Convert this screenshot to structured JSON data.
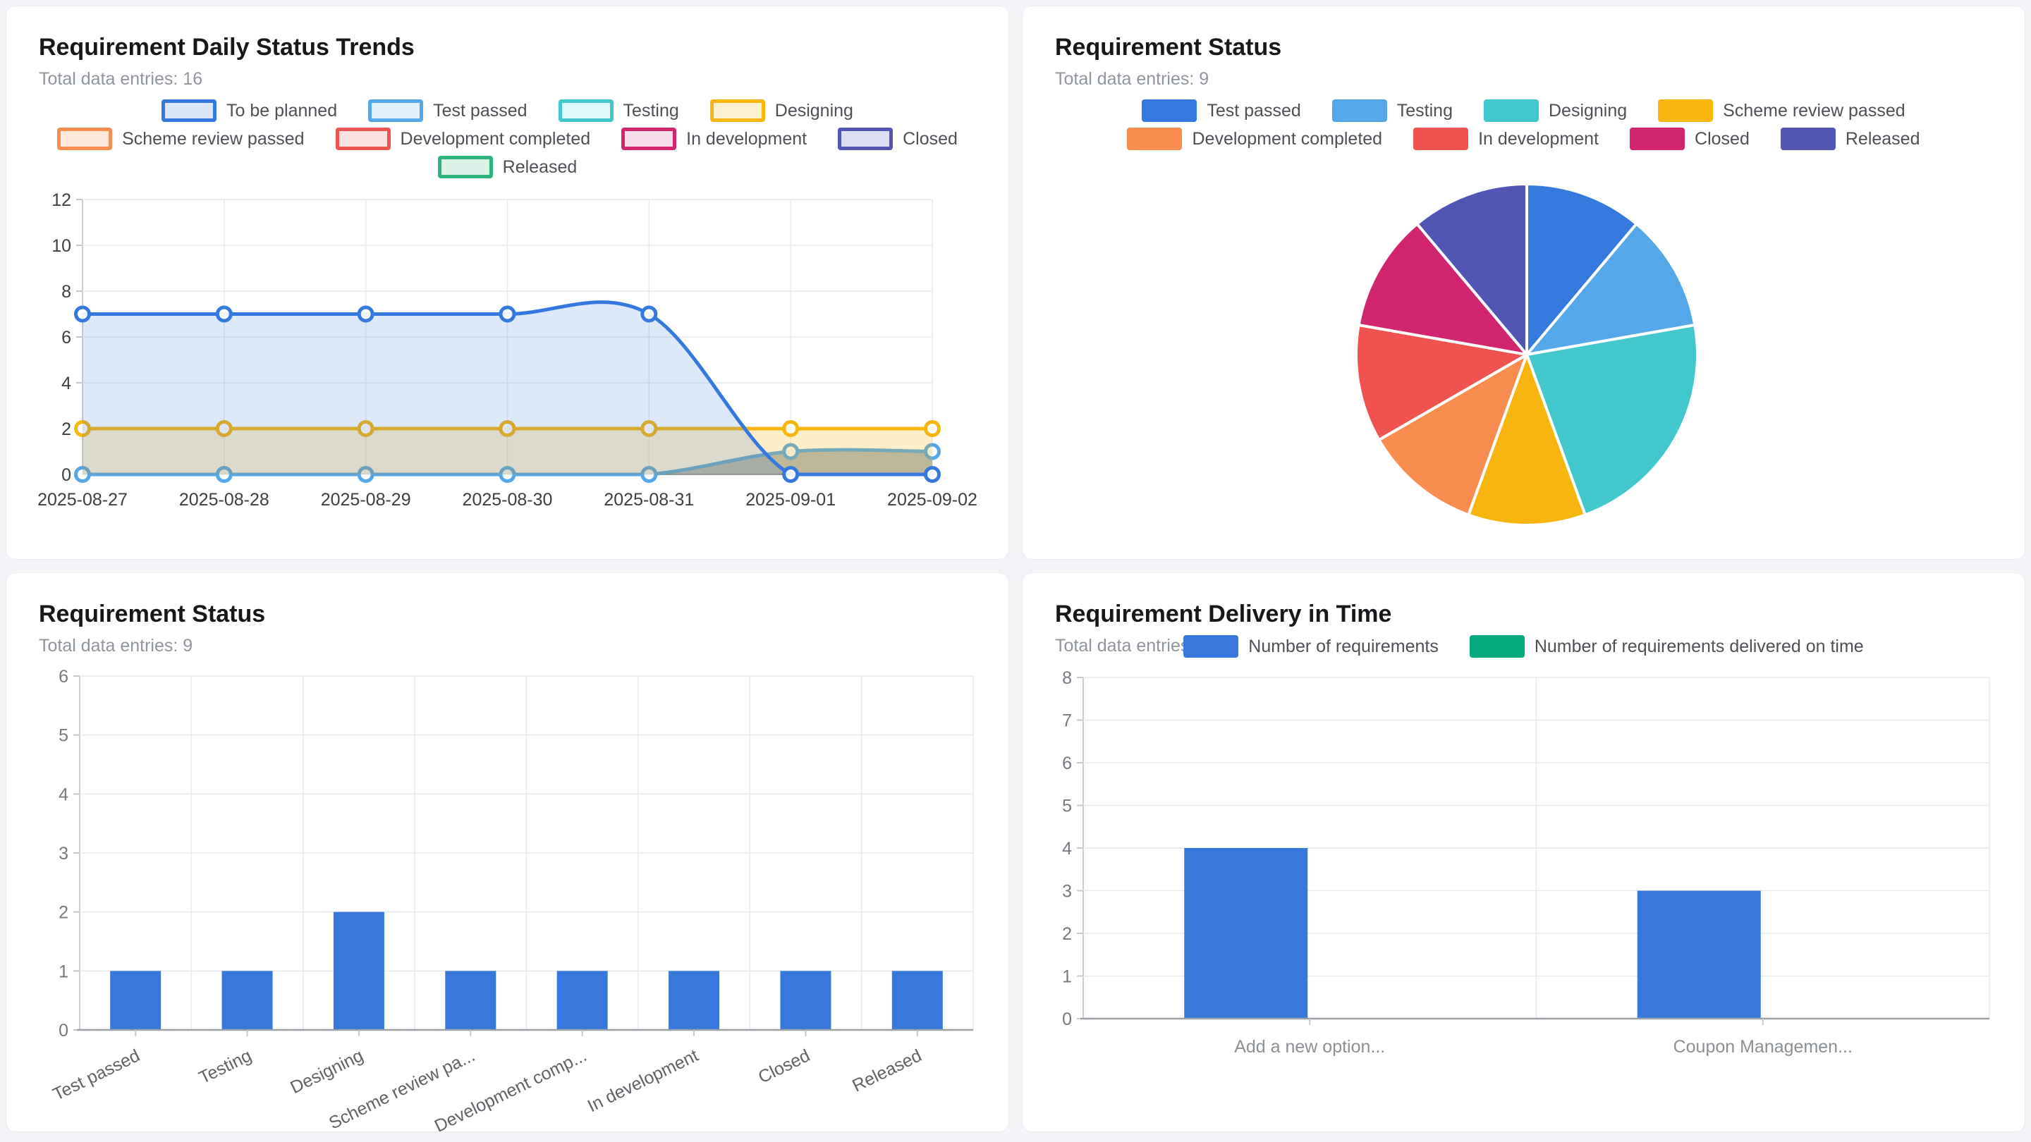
{
  "panels": {
    "trends": {
      "title": "Requirement Daily Status Trends",
      "subtitle": "Total data entries: 16"
    },
    "pie": {
      "title": "Requirement Status",
      "subtitle": "Total data entries: 9"
    },
    "statusBars": {
      "title": "Requirement Status",
      "subtitle": "Total data entries: 9"
    },
    "delivery": {
      "title": "Requirement Delivery in Time",
      "subtitle": "Total data entries: 7"
    }
  },
  "chart_data": [
    {
      "id": "trends",
      "type": "line",
      "title": "Requirement Daily Status Trends",
      "x": [
        "2025-08-27",
        "2025-08-28",
        "2025-08-29",
        "2025-08-30",
        "2025-08-31",
        "2025-09-01",
        "2025-09-02"
      ],
      "ylim": [
        0,
        12
      ],
      "ytick_step": 2,
      "grid": true,
      "legend_position": "top",
      "series": [
        {
          "name": "To be planned",
          "color": "#3579de",
          "fill": "rgba(53,121,222,0.17)",
          "swatch_fill": "#dbe7f8",
          "values": [
            7,
            7,
            7,
            7,
            7,
            0,
            0
          ]
        },
        {
          "name": "Test passed",
          "color": "#54a7e8",
          "fill": "rgba(96,116,132,0.50)",
          "swatch_fill": "#e1f1fb",
          "values": [
            0,
            0,
            0,
            0,
            0,
            1,
            1
          ]
        },
        {
          "name": "Testing",
          "color": "#41c7cc",
          "fill": "rgba(65,199,204,0.20)",
          "swatch_fill": "#e0f7f7",
          "values": [
            0,
            0,
            0,
            0,
            0,
            0,
            0
          ]
        },
        {
          "name": "Designing",
          "color": "#f8b50d",
          "fill": "rgba(248,181,13,0.22)",
          "swatch_fill": "#fdf0d0",
          "values": [
            2,
            2,
            2,
            2,
            2,
            2,
            2
          ]
        },
        {
          "name": "Scheme review passed",
          "color": "#f98d4f",
          "fill": "rgba(249,141,79,0.20)",
          "swatch_fill": "#fee9dd",
          "values": [
            0,
            0,
            0,
            0,
            0,
            0,
            0
          ]
        },
        {
          "name": "Development completed",
          "color": "#f0534f",
          "fill": "rgba(240,83,79,0.20)",
          "swatch_fill": "#fde1e0",
          "values": [
            0,
            0,
            0,
            0,
            0,
            0,
            0
          ]
        },
        {
          "name": "In development",
          "color": "#d2256f",
          "fill": "rgba(210,37,111,0.20)",
          "swatch_fill": "#f7dcea",
          "values": [
            0,
            0,
            0,
            0,
            0,
            0,
            0
          ]
        },
        {
          "name": "Closed",
          "color": "#5156b4",
          "fill": "rgba(81,86,180,0.20)",
          "swatch_fill": "#dddff2",
          "values": [
            0,
            0,
            0,
            0,
            0,
            0,
            0
          ]
        },
        {
          "name": "Released",
          "color": "#2cb47e",
          "fill": "rgba(44,180,126,0.20)",
          "swatch_fill": "#dcf2e8",
          "values": [
            0,
            0,
            0,
            0,
            0,
            0,
            0
          ]
        }
      ]
    },
    {
      "id": "status_pie",
      "type": "pie",
      "title": "Requirement Status",
      "labels": [
        "Test passed",
        "Testing",
        "Designing",
        "Scheme review passed",
        "Development completed",
        "In development",
        "Closed",
        "Released"
      ],
      "values": [
        1,
        1,
        2,
        1,
        1,
        1,
        1,
        1
      ],
      "colors": [
        "#3579de",
        "#54a7e8",
        "#41c7cc",
        "#f8b50d",
        "#f98d4f",
        "#f0534f",
        "#d2256f",
        "#5156b4"
      ],
      "legend_position": "top"
    },
    {
      "id": "status_bar",
      "type": "bar",
      "title": "Requirement Status",
      "categories": [
        "Test passed",
        "Testing",
        "Designing",
        "Scheme review pa...",
        "Development comp...",
        "In development",
        "Closed",
        "Released"
      ],
      "values": [
        1,
        1,
        2,
        1,
        1,
        1,
        1,
        1
      ],
      "color": "#3878dd",
      "ylim": [
        0,
        6
      ],
      "ytick_step": 1,
      "grid": true,
      "label_rotation": -26
    },
    {
      "id": "delivery",
      "type": "bar",
      "title": "Requirement Delivery in Time",
      "categories": [
        "Add a new option...",
        "Coupon Managemen..."
      ],
      "ylim": [
        0,
        8
      ],
      "ytick_step": 1,
      "grid": true,
      "legend_position": "top",
      "series": [
        {
          "name": "Number of requirements",
          "color": "#3878dd",
          "values": [
            4,
            3
          ]
        },
        {
          "name": "Number of requirements delivered on time",
          "color": "#07a97f",
          "values": [
            0,
            0
          ]
        }
      ]
    }
  ]
}
